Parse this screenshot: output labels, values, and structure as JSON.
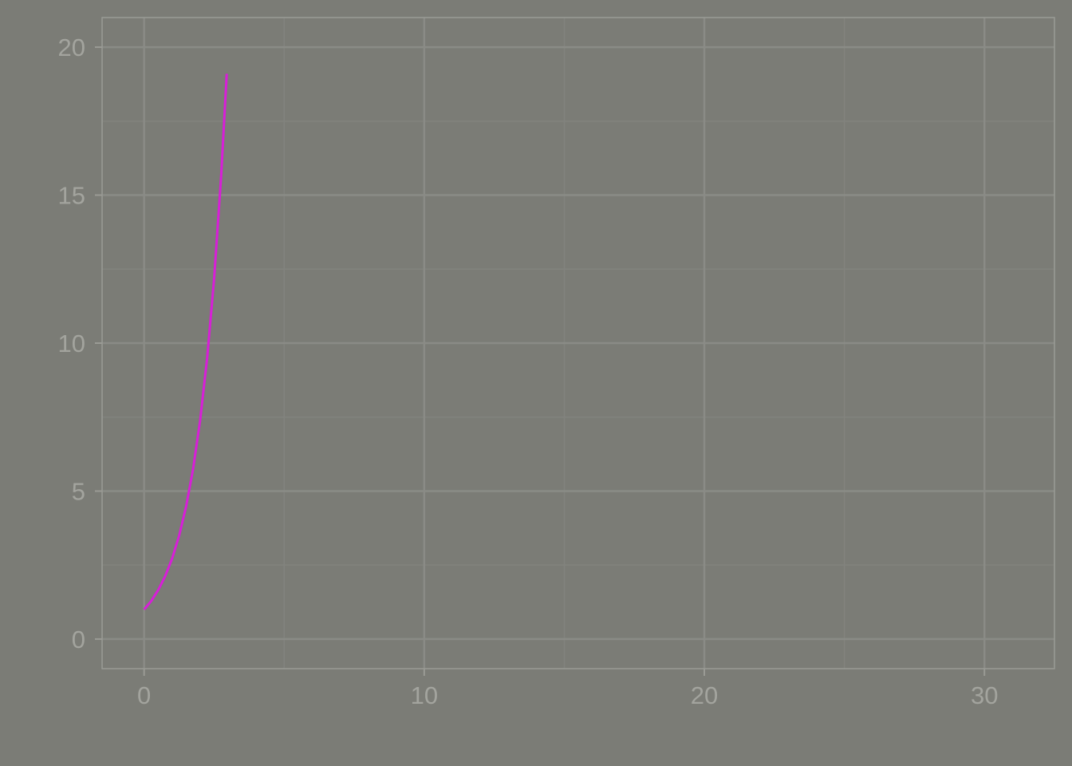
{
  "colors": {
    "background": "#7b7c76",
    "panel_border": "#9a9b95",
    "grid_major": "#8a8b86",
    "grid_minor": "#82837e",
    "tick_text": "#a3a49e",
    "line": "#d81ed8"
  },
  "chart_data": {
    "type": "line",
    "title": "",
    "xlabel": "",
    "ylabel": "",
    "xlim": [
      -1.5,
      32.5
    ],
    "ylim": [
      -1,
      21
    ],
    "x_ticks": [
      0,
      10,
      20,
      30
    ],
    "x_tick_labels": [
      "0",
      "10",
      "20",
      "30"
    ],
    "x_minor_ticks": [
      5,
      15,
      25
    ],
    "y_ticks": [
      0,
      5,
      10,
      15,
      20
    ],
    "y_tick_labels": [
      "0",
      "5",
      "10",
      "15",
      "20"
    ],
    "y_minor_ticks": [
      2.5,
      7.5,
      12.5,
      17.5
    ],
    "grid": true,
    "legend": "none",
    "series": [
      {
        "x": [
          0,
          0.25,
          0.5,
          0.75,
          1.0,
          1.25,
          1.5,
          1.75,
          2.0,
          2.25,
          2.5,
          2.75,
          2.95
        ],
        "y": [
          1.0,
          1.28,
          1.65,
          2.12,
          2.72,
          3.49,
          4.48,
          5.75,
          7.39,
          9.49,
          12.18,
          15.64,
          19.1
        ]
      }
    ]
  }
}
